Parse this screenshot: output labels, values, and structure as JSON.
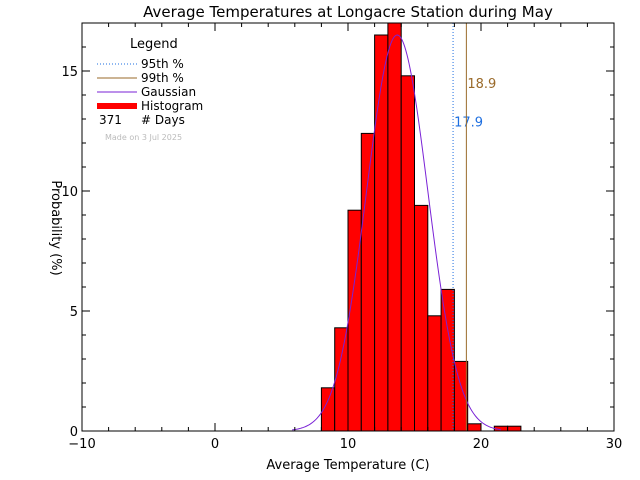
{
  "chart_data": {
    "type": "bar",
    "title": "Average Temperatures at Longacre Station during May",
    "xlabel": "Average Temperature (C)",
    "ylabel": "Probability (%)",
    "xlim": [
      -10,
      30
    ],
    "ylim": [
      0,
      17
    ],
    "xticks": [
      -10,
      0,
      10,
      20,
      30
    ],
    "yticks": [
      0,
      5,
      10,
      15
    ],
    "x_tick_labels": [
      "−10",
      "0",
      "10",
      "20",
      "30"
    ],
    "y_tick_labels": [
      "0",
      "5",
      "10",
      "15"
    ],
    "bin_width": 1,
    "bins": [
      {
        "x0": 8,
        "value": 1.8
      },
      {
        "x0": 9,
        "value": 4.3
      },
      {
        "x0": 10,
        "value": 9.2
      },
      {
        "x0": 11,
        "value": 12.4
      },
      {
        "x0": 12,
        "value": 16.5
      },
      {
        "x0": 13,
        "value": 17.0
      },
      {
        "x0": 14,
        "value": 14.8
      },
      {
        "x0": 15,
        "value": 9.4
      },
      {
        "x0": 16,
        "value": 4.8
      },
      {
        "x0": 17,
        "value": 5.9
      },
      {
        "x0": 18,
        "value": 2.9
      },
      {
        "x0": 19,
        "value": 0.3
      },
      {
        "x0": 21,
        "value": 0.2
      },
      {
        "x0": 22,
        "value": 0.2
      }
    ],
    "gaussian": {
      "mean": 13.7,
      "sigma": 2.3,
      "peak": 16.5
    },
    "percentiles": [
      {
        "label": "95th %",
        "value": 17.9,
        "value_label": "17.9",
        "color": "#1e6fe0",
        "style": "dotted",
        "label_y": 12.9
      },
      {
        "label": "99th %",
        "value": 18.9,
        "value_label": "18.9",
        "color": "#9a6a2a",
        "style": "solid",
        "label_y": 14.5
      }
    ],
    "legend": {
      "title": "Legend",
      "entries": [
        {
          "label": "95th %",
          "kind": "dotted",
          "color": "#1e6fe0"
        },
        {
          "label": "99th %",
          "kind": "line",
          "color": "#9a6a2a"
        },
        {
          "label": "Gaussian",
          "kind": "line",
          "color": "#7a22d6"
        },
        {
          "label": "Histogram",
          "kind": "thick",
          "color": "#ff0000"
        },
        {
          "label": "# Days",
          "kind": "count",
          "count": "371"
        }
      ],
      "placement": "top-left"
    },
    "made_on": "Made on 3 Jul 2025",
    "colors": {
      "bar_fill": "#ff0000",
      "bar_edge": "#000000",
      "gaussian": "#7a22d6"
    }
  }
}
